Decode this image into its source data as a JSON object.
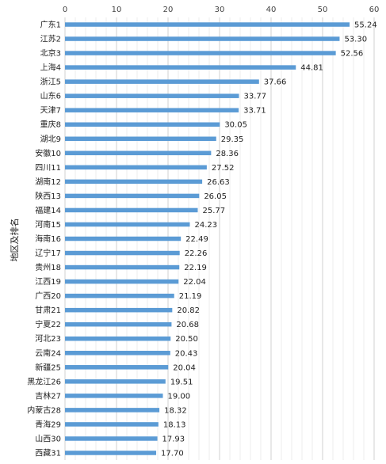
{
  "chart_data": {
    "type": "bar",
    "orientation": "horizontal",
    "ylabel": "地区及排名",
    "xlim": [
      0,
      60
    ],
    "xticks": [
      0,
      10,
      20,
      30,
      40,
      50,
      60
    ],
    "x_axis_position": "top",
    "grid": true,
    "bar_color": "#5b9bd5",
    "categories": [
      "广东1",
      "江苏2",
      "北京3",
      "上海4",
      "浙江5",
      "山东6",
      "天津7",
      "重庆8",
      "湖北9",
      "安徽10",
      "四川11",
      "湖南12",
      "陕西13",
      "福建14",
      "河南15",
      "海南16",
      "辽宁17",
      "贵州18",
      "江西19",
      "广西20",
      "甘肃21",
      "宁夏22",
      "河北23",
      "云南24",
      "新疆25",
      "黑龙江26",
      "吉林27",
      "内蒙古28",
      "青海29",
      "山西30",
      "西藏31"
    ],
    "values": [
      55.24,
      53.3,
      52.56,
      44.81,
      37.66,
      33.77,
      33.71,
      30.05,
      29.35,
      28.36,
      27.52,
      26.63,
      26.05,
      25.77,
      24.23,
      22.49,
      22.26,
      22.19,
      22.04,
      21.19,
      20.82,
      20.68,
      20.5,
      20.43,
      20.04,
      19.51,
      19.0,
      18.32,
      18.13,
      17.93,
      17.7
    ],
    "value_labels": [
      "55.24",
      "53.30",
      "52.56",
      "44.81",
      "37.66",
      "33.77",
      "33.71",
      "30.05",
      "29.35",
      "28.36",
      "27.52",
      "26.63",
      "26.05",
      "25.77",
      "24.23",
      "22.49",
      "22.26",
      "22.19",
      "22.04",
      "21.19",
      "20.82",
      "20.68",
      "20.50",
      "20.43",
      "20.04",
      "19.51",
      "19.00",
      "18.32",
      "18.13",
      "17.93",
      "17.70"
    ]
  }
}
